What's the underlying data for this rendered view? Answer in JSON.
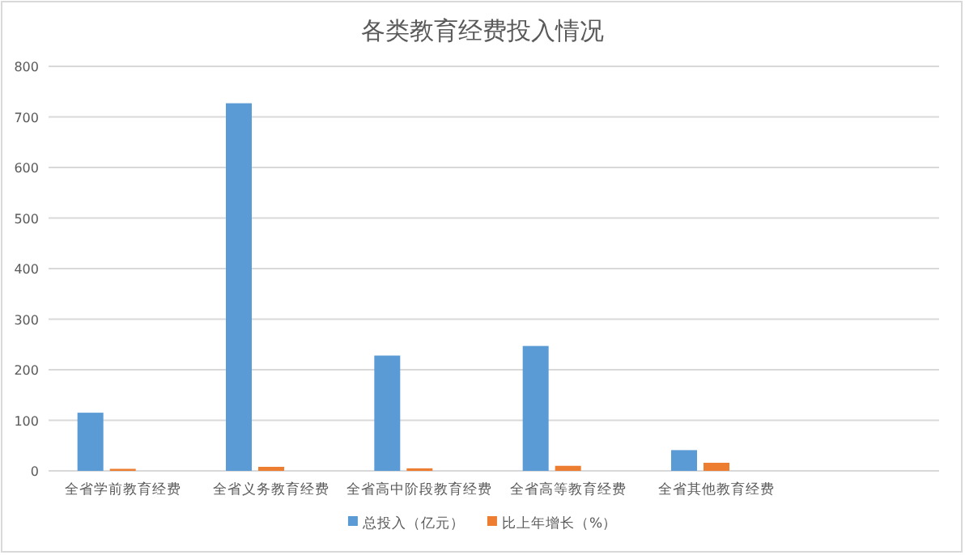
{
  "chart_data": {
    "type": "bar",
    "title": "各类教育经费投入情况",
    "categories": [
      "全省学前教育经费",
      "全省义务教育经费",
      "全省高中阶段教育经费",
      "全省高等教育经费",
      "全省其他教育经费",
      null
    ],
    "series": [
      {
        "name": "总投入（亿元）",
        "color": "#5b9bd5",
        "values": [
          115,
          727,
          228,
          247,
          41,
          null
        ]
      },
      {
        "name": "比上年增长（%）",
        "color": "#ed7d31",
        "values": [
          4,
          8,
          5,
          10,
          16,
          null
        ]
      }
    ],
    "ylim": [
      0,
      800
    ],
    "yticks": [
      0,
      100,
      200,
      300,
      400,
      500,
      600,
      700,
      800
    ],
    "grid": "y",
    "legend": "bottom"
  }
}
